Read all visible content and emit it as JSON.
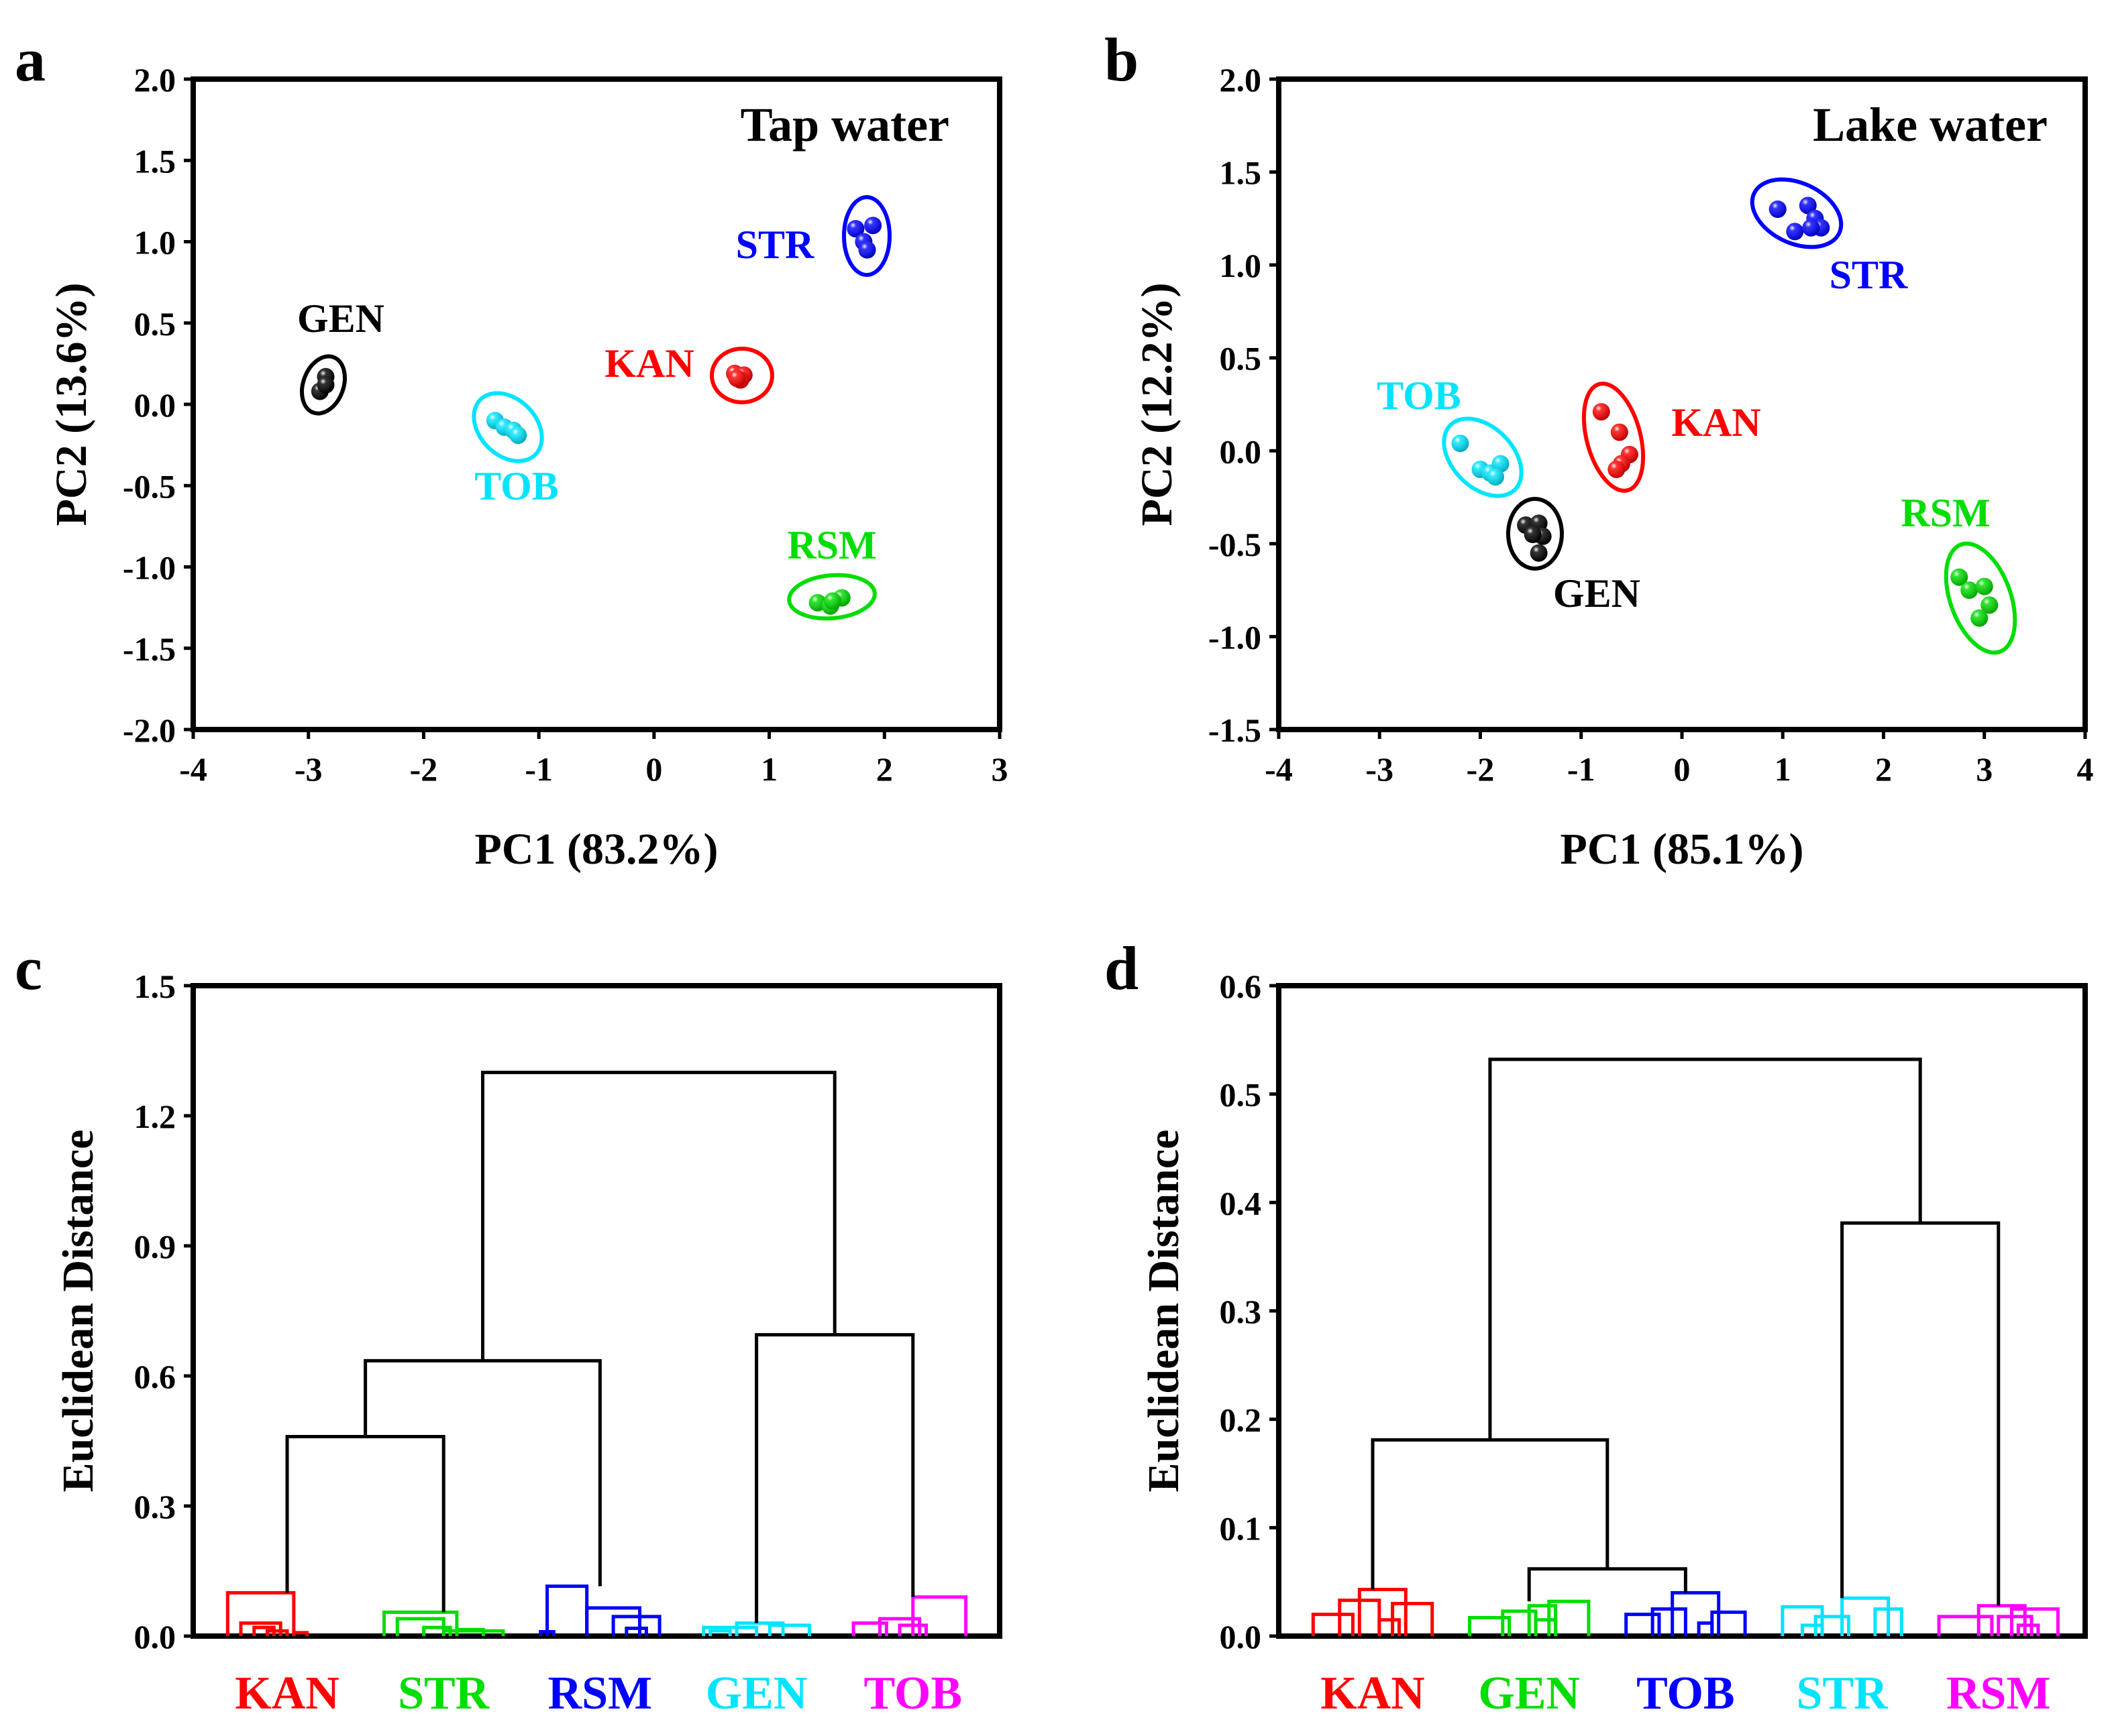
{
  "chart_data": [
    {
      "panel": "a",
      "type": "scatter",
      "title": "Tap water",
      "xlabel": "PC1 (83.2%)",
      "ylabel": "PC2 (13.6%)",
      "xlim": [
        -4,
        3
      ],
      "ylim": [
        -2.0,
        2.0
      ],
      "xticks": [
        "-4",
        "-3",
        "-2",
        "-1",
        "0",
        "1",
        "2",
        "3"
      ],
      "yticks": [
        "2.0",
        "1.5",
        "1.0",
        "0.5",
        "0.0",
        "-0.5",
        "-1.0",
        "-1.5",
        "-2.0"
      ],
      "series": [
        {
          "name": "STR",
          "color": "#0000ff",
          "points": [
            [
              1.75,
              1.08
            ],
            [
              1.9,
              1.1
            ],
            [
              1.82,
              1.0
            ],
            [
              1.85,
              0.95
            ]
          ]
        },
        {
          "name": "GEN",
          "color": "#000000",
          "points": [
            [
              -2.85,
              0.17
            ],
            [
              -2.9,
              0.08
            ],
            [
              -2.85,
              0.12
            ]
          ]
        },
        {
          "name": "KAN",
          "color": "#ff0000",
          "points": [
            [
              0.7,
              0.19
            ],
            [
              0.78,
              0.18
            ],
            [
              0.75,
              0.15
            ],
            [
              0.72,
              0.16
            ]
          ]
        },
        {
          "name": "TOB",
          "color": "#00e5ff",
          "points": [
            [
              -1.38,
              -0.1
            ],
            [
              -1.3,
              -0.14
            ],
            [
              -1.22,
              -0.16
            ],
            [
              -1.18,
              -0.19
            ]
          ]
        },
        {
          "name": "RSM",
          "color": "#00dd00",
          "points": [
            [
              1.42,
              -1.22
            ],
            [
              1.53,
              -1.24
            ],
            [
              1.63,
              -1.19
            ],
            [
              1.55,
              -1.21
            ]
          ]
        }
      ]
    },
    {
      "panel": "b",
      "type": "scatter",
      "title": "Lake water",
      "xlabel": "PC1 (85.1%)",
      "ylabel": "PC2 (12.2%)",
      "xlim": [
        -4,
        4
      ],
      "ylim": [
        -1.5,
        2.0
      ],
      "xticks": [
        "-4",
        "-3",
        "-2",
        "-1",
        "0",
        "1",
        "2",
        "3",
        "4"
      ],
      "yticks": [
        "2.0",
        "1.5",
        "1.0",
        "0.5",
        "0.0",
        "-0.5",
        "-1.0",
        "-1.5"
      ],
      "series": [
        {
          "name": "STR",
          "color": "#0000ff",
          "points": [
            [
              0.95,
              1.3
            ],
            [
              1.25,
              1.32
            ],
            [
              1.32,
              1.25
            ],
            [
              1.38,
              1.2
            ],
            [
              1.12,
              1.18
            ],
            [
              1.28,
              1.2
            ]
          ]
        },
        {
          "name": "TOB",
          "color": "#00e5ff",
          "points": [
            [
              -2.2,
              0.04
            ],
            [
              -2.0,
              -0.1
            ],
            [
              -1.9,
              -0.12
            ],
            [
              -1.8,
              -0.07
            ],
            [
              -1.85,
              -0.14
            ]
          ]
        },
        {
          "name": "KAN",
          "color": "#ff0000",
          "points": [
            [
              -0.8,
              0.21
            ],
            [
              -0.62,
              0.1
            ],
            [
              -0.52,
              -0.02
            ],
            [
              -0.6,
              -0.07
            ],
            [
              -0.65,
              -0.1
            ]
          ]
        },
        {
          "name": "GEN",
          "color": "#000000",
          "points": [
            [
              -1.55,
              -0.4
            ],
            [
              -1.42,
              -0.39
            ],
            [
              -1.38,
              -0.46
            ],
            [
              -1.42,
              -0.55
            ],
            [
              -1.48,
              -0.45
            ]
          ]
        },
        {
          "name": "RSM",
          "color": "#00dd00",
          "points": [
            [
              2.75,
              -0.68
            ],
            [
              2.85,
              -0.75
            ],
            [
              3.0,
              -0.73
            ],
            [
              3.05,
              -0.83
            ],
            [
              2.95,
              -0.9
            ]
          ]
        }
      ]
    },
    {
      "panel": "c",
      "type": "dendrogram",
      "ylabel": "Euclidean Distance",
      "ylim": [
        0.0,
        1.5
      ],
      "yticks": [
        "1.5",
        "1.2",
        "0.9",
        "0.6",
        "0.3",
        "0.0"
      ],
      "groups": [
        {
          "name": "KAN",
          "color": "#ff0000",
          "leaves": [
            0.05,
            0.15,
            0.25,
            0.35,
            0.45,
            0.55,
            0.65
          ],
          "links": [
            [
              0.05,
              0.0,
              0.55,
              0.0,
              0.1
            ],
            [
              0.15,
              0.0,
              0.45,
              0.0,
              0.03
            ],
            [
              0.25,
              0.0,
              0.4,
              0.0,
              0.02
            ],
            [
              0.35,
              0.0,
              0.5,
              0.0,
              0.012
            ],
            [
              0.55,
              0.0,
              0.65,
              0.0,
              0.008
            ]
          ],
          "top": 0.1
        },
        {
          "name": "STR",
          "color": "#00dd00",
          "links": [
            [
              0.05,
              0.0,
              0.6,
              0.0,
              0.055
            ],
            [
              0.15,
              0.0,
              0.5,
              0.0,
              0.04
            ],
            [
              0.35,
              0.0,
              0.55,
              0.0,
              0.02
            ],
            [
              0.6,
              0.0,
              0.8,
              0.0,
              0.015
            ],
            [
              0.5,
              0.0,
              0.95,
              0.0,
              0.012
            ]
          ],
          "top": 0.055
        },
        {
          "name": "RSM",
          "color": "#0000ff",
          "links": [
            [
              0.1,
              0.0,
              0.4,
              0.0,
              0.115
            ],
            [
              0.4,
              0.0,
              0.8,
              0.0,
              0.065
            ],
            [
              0.6,
              0.0,
              0.95,
              0.0,
              0.045
            ],
            [
              0.7,
              0.0,
              0.85,
              0.0,
              0.018
            ],
            [
              0.05,
              0.0,
              0.15,
              0.0,
              0.01
            ]
          ],
          "top": 0.115
        },
        {
          "name": "GEN",
          "color": "#00e5ff",
          "links": [
            [
              0.1,
              0.0,
              0.5,
              0.0,
              0.02
            ],
            [
              0.35,
              0.0,
              0.7,
              0.0,
              0.03
            ],
            [
              0.6,
              0.0,
              0.9,
              0.0,
              0.025
            ],
            [
              0.15,
              0.0,
              0.3,
              0.0,
              0.012
            ]
          ],
          "top": 0.03
        },
        {
          "name": "TOB",
          "color": "#ff00ff",
          "links": [
            [
              0.05,
              0.0,
              0.3,
              0.0,
              0.03
            ],
            [
              0.25,
              0.0,
              0.55,
              0.0,
              0.04
            ],
            [
              0.5,
              0.0,
              0.9,
              0.0,
              0.09
            ],
            [
              0.4,
              0.0,
              0.6,
              0.0,
              0.025
            ]
          ],
          "top": 0.09
        }
      ],
      "joins": [
        {
          "left": "KAN",
          "right": "STR",
          "height": 0.46
        },
        {
          "left": "KAN+STR",
          "right": "RSM",
          "height": 0.635
        },
        {
          "left": "GEN",
          "right": "TOB",
          "height": 0.695
        },
        {
          "left": "KAN+STR+RSM",
          "right": "GEN+TOB",
          "height": 1.3
        }
      ]
    },
    {
      "panel": "d",
      "type": "dendrogram",
      "ylabel": "Euclidean Distance",
      "ylim": [
        0.0,
        0.6
      ],
      "yticks": [
        "0.6",
        "0.5",
        "0.4",
        "0.3",
        "0.2",
        "0.1",
        "0.0"
      ],
      "groups": [
        {
          "name": "KAN",
          "color": "#ff0000",
          "links": [
            [
              0.05,
              0.0,
              0.35,
              0.0,
              0.02
            ],
            [
              0.25,
              0.0,
              0.55,
              0.0,
              0.033
            ],
            [
              0.4,
              0.0,
              0.75,
              0.0,
              0.043
            ],
            [
              0.65,
              0.0,
              0.95,
              0.0,
              0.03
            ],
            [
              0.55,
              0.0,
              0.7,
              0.0,
              0.015
            ]
          ],
          "top": 0.043
        },
        {
          "name": "GEN",
          "color": "#00dd00",
          "links": [
            [
              0.05,
              0.0,
              0.35,
              0.0,
              0.017
            ],
            [
              0.3,
              0.0,
              0.55,
              0.0,
              0.023
            ],
            [
              0.5,
              0.0,
              0.7,
              0.0,
              0.028
            ],
            [
              0.65,
              0.0,
              0.95,
              0.0,
              0.032
            ],
            [
              0.55,
              0.0,
              0.7,
              0.0,
              0.015
            ]
          ],
          "top": 0.032
        },
        {
          "name": "TOB",
          "color": "#0000ff",
          "links": [
            [
              0.05,
              0.0,
              0.3,
              0.0,
              0.02
            ],
            [
              0.25,
              0.0,
              0.5,
              0.0,
              0.025
            ],
            [
              0.4,
              0.0,
              0.75,
              0.0,
              0.04
            ],
            [
              0.7,
              0.0,
              0.95,
              0.0,
              0.022
            ],
            [
              0.6,
              0.0,
              0.7,
              0.0,
              0.012
            ]
          ],
          "top": 0.04
        },
        {
          "name": "STR",
          "color": "#00e5ff",
          "links": [
            [
              0.05,
              0.0,
              0.35,
              0.0,
              0.027
            ],
            [
              0.3,
              0.0,
              0.55,
              0.0,
              0.018
            ],
            [
              0.5,
              0.0,
              0.85,
              0.0,
              0.035
            ],
            [
              0.75,
              0.0,
              0.95,
              0.0,
              0.025
            ],
            [
              0.2,
              0.0,
              0.35,
              0.0,
              0.01
            ]
          ],
          "top": 0.035
        },
        {
          "name": "RSM",
          "color": "#ff00ff",
          "links": [
            [
              0.05,
              0.0,
              0.45,
              0.0,
              0.018
            ],
            [
              0.35,
              0.0,
              0.7,
              0.0,
              0.028
            ],
            [
              0.6,
              0.0,
              0.95,
              0.0,
              0.025
            ],
            [
              0.5,
              0.0,
              0.75,
              0.0,
              0.018
            ],
            [
              0.65,
              0.0,
              0.8,
              0.0,
              0.01
            ]
          ],
          "top": 0.028
        }
      ],
      "joins": [
        {
          "left": "GEN",
          "right": "TOB",
          "height": 0.062
        },
        {
          "left": "KAN",
          "right": "GEN+TOB",
          "height": 0.181
        },
        {
          "left": "STR",
          "right": "RSM",
          "height": 0.381
        },
        {
          "left": "KAN+GEN+TOB",
          "right": "STR+RSM",
          "height": 0.532
        }
      ]
    }
  ],
  "panel_labels": [
    "a",
    "b",
    "c",
    "d"
  ]
}
